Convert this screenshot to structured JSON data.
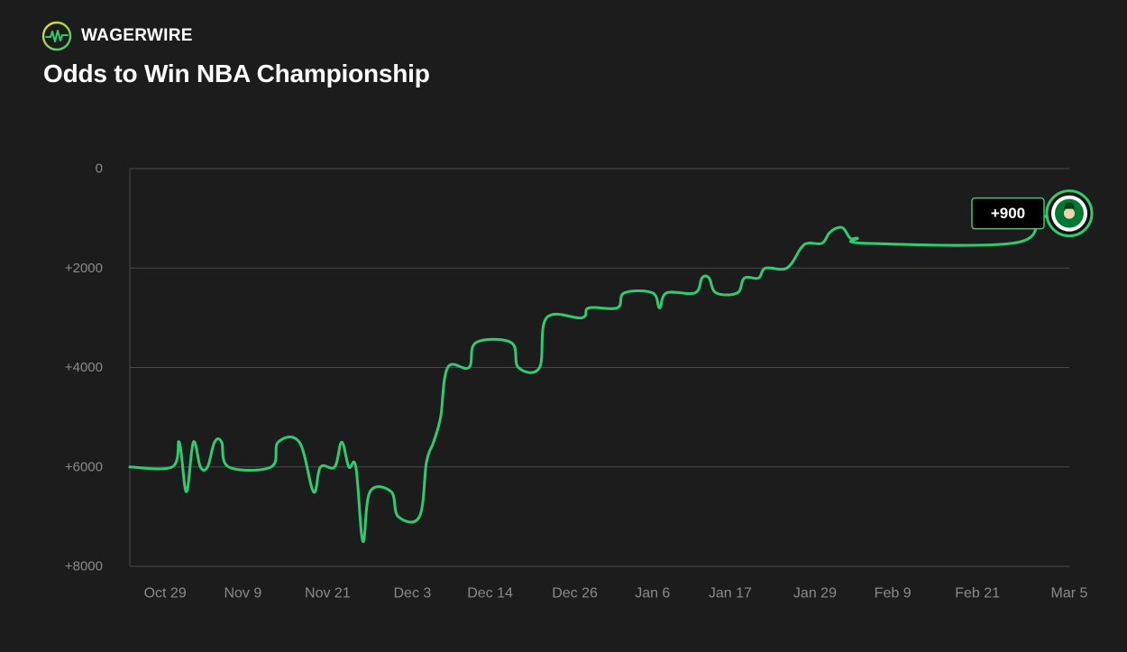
{
  "brand": {
    "name": "WAGERWIRE",
    "accent_color": "#2ecc71",
    "icon": "waveform-icon"
  },
  "chart_data": {
    "type": "line",
    "title": "Odds to Win NBA Championship",
    "xlabel": "",
    "ylabel": "",
    "y_reversed": true,
    "ylim": [
      0,
      8000
    ],
    "yticks": [
      0,
      2000,
      4000,
      6000,
      8000
    ],
    "ytick_labels": [
      "0",
      "+2000",
      "+4000",
      "+6000",
      "+8000"
    ],
    "xlim": [
      "2023-10-24",
      "2024-03-05"
    ],
    "xticks": [
      {
        "date": "2023-10-29",
        "label": "Oct 29"
      },
      {
        "date": "2023-11-09",
        "label": "Nov 9"
      },
      {
        "date": "2023-11-21",
        "label": "Nov 21"
      },
      {
        "date": "2023-12-03",
        "label": "Dec 3"
      },
      {
        "date": "2023-12-14",
        "label": "Dec 14"
      },
      {
        "date": "2023-12-26",
        "label": "Dec 26"
      },
      {
        "date": "2024-01-06",
        "label": "Jan 6"
      },
      {
        "date": "2024-01-17",
        "label": "Jan 17"
      },
      {
        "date": "2024-01-29",
        "label": "Jan 29"
      },
      {
        "date": "2024-02-09",
        "label": "Feb 9"
      },
      {
        "date": "2024-02-21",
        "label": "Feb 21"
      },
      {
        "date": "2024-03-05",
        "label": "Mar 5"
      }
    ],
    "grid": true,
    "line_color": "#2ecc71",
    "series": [
      {
        "points": [
          [
            "2023-10-24",
            6000
          ],
          [
            "2023-10-30",
            6000
          ],
          [
            "2023-10-31",
            5500
          ],
          [
            "2023-11-01",
            6500
          ],
          [
            "2023-11-02",
            5500
          ],
          [
            "2023-11-03",
            6000
          ],
          [
            "2023-11-04",
            6000
          ],
          [
            "2023-11-05",
            5500
          ],
          [
            "2023-11-06",
            5500
          ],
          [
            "2023-11-07",
            6000
          ],
          [
            "2023-11-13",
            6000
          ],
          [
            "2023-11-14",
            5500
          ],
          [
            "2023-11-17",
            5500
          ],
          [
            "2023-11-19",
            6500
          ],
          [
            "2023-11-20",
            6000
          ],
          [
            "2023-11-22",
            6000
          ],
          [
            "2023-11-23",
            5500
          ],
          [
            "2023-11-24",
            6000
          ],
          [
            "2023-11-25",
            6000
          ],
          [
            "2023-11-26",
            7500
          ],
          [
            "2023-11-27",
            6500
          ],
          [
            "2023-11-30",
            6500
          ],
          [
            "2023-12-01",
            7000
          ],
          [
            "2023-12-04",
            7000
          ],
          [
            "2023-12-05",
            5900
          ],
          [
            "2023-12-06",
            5500
          ],
          [
            "2023-12-07",
            5000
          ],
          [
            "2023-12-08",
            4000
          ],
          [
            "2023-12-11",
            4000
          ],
          [
            "2023-12-12",
            3500
          ],
          [
            "2023-12-17",
            3500
          ],
          [
            "2023-12-18",
            4000
          ],
          [
            "2023-12-21",
            4000
          ],
          [
            "2023-12-22",
            3000
          ],
          [
            "2023-12-27",
            3000
          ],
          [
            "2023-12-28",
            2800
          ],
          [
            "2024-01-01",
            2800
          ],
          [
            "2024-01-02",
            2500
          ],
          [
            "2024-01-06",
            2500
          ],
          [
            "2024-01-07",
            2800
          ],
          [
            "2024-01-08",
            2500
          ],
          [
            "2024-01-12",
            2500
          ],
          [
            "2024-01-13",
            2200
          ],
          [
            "2024-01-14",
            2200
          ],
          [
            "2024-01-15",
            2500
          ],
          [
            "2024-01-18",
            2500
          ],
          [
            "2024-01-19",
            2200
          ],
          [
            "2024-01-21",
            2200
          ],
          [
            "2024-01-22",
            2000
          ],
          [
            "2024-01-25",
            2000
          ],
          [
            "2024-01-27",
            1600
          ],
          [
            "2024-01-28",
            1500
          ],
          [
            "2024-01-30",
            1500
          ],
          [
            "2024-01-31",
            1300
          ],
          [
            "2024-02-01",
            1200
          ],
          [
            "2024-02-02",
            1200
          ],
          [
            "2024-02-03",
            1400
          ],
          [
            "2024-02-04",
            1400
          ],
          [
            "2024-02-05",
            1500
          ],
          [
            "2024-02-26",
            1500
          ],
          [
            "2024-03-01",
            1000
          ],
          [
            "2024-03-05",
            900
          ]
        ]
      }
    ],
    "annotation": {
      "label": "+900",
      "value": 900,
      "date": "2024-03-05",
      "team_logo": "celtics-logo-icon"
    }
  }
}
